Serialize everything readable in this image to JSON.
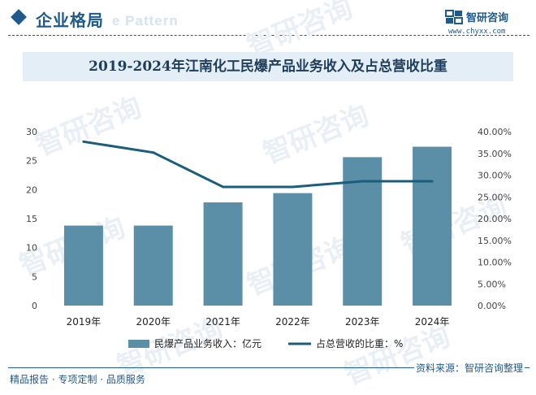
{
  "header": {
    "section_title": "企业格局",
    "ghost_text": "e Pattern",
    "brand_name": "智研咨询",
    "brand_url": "www.chyxx.com"
  },
  "watermark_text": "智研咨询",
  "chart_data": {
    "type": "bar",
    "title": "2019-2024年江南化工民爆产品业务收入及占总营收比重",
    "categories": [
      "2019年",
      "2020年",
      "2021年",
      "2022年",
      "2023年",
      "2024年"
    ],
    "series": [
      {
        "name": "民爆产品业务收入：亿元",
        "type": "bar",
        "axis": "left",
        "color": "#5b8fa8",
        "values": [
          13.8,
          13.8,
          17.8,
          19.4,
          25.6,
          27.4
        ]
      },
      {
        "name": "占总营收的比重：%",
        "type": "line",
        "axis": "right",
        "color": "#1b5d7a",
        "values": [
          37.7,
          35.2,
          27.3,
          27.3,
          28.6,
          28.6
        ]
      }
    ],
    "y_left": {
      "min": 0,
      "max": 30,
      "ticks": [
        "0",
        "5",
        "10",
        "15",
        "20",
        "25",
        "30"
      ]
    },
    "y_right": {
      "min": 0,
      "max": 40,
      "ticks": [
        "0.00%",
        "5.00%",
        "10.00%",
        "15.00%",
        "20.00%",
        "25.00%",
        "30.00%",
        "35.00%",
        "40.00%"
      ]
    },
    "grid": false,
    "legend_position": "bottom-center"
  },
  "footer": {
    "left": "精品报告 · 专项定制 · 品质服务",
    "source": "资料来源：智研咨询整理"
  }
}
